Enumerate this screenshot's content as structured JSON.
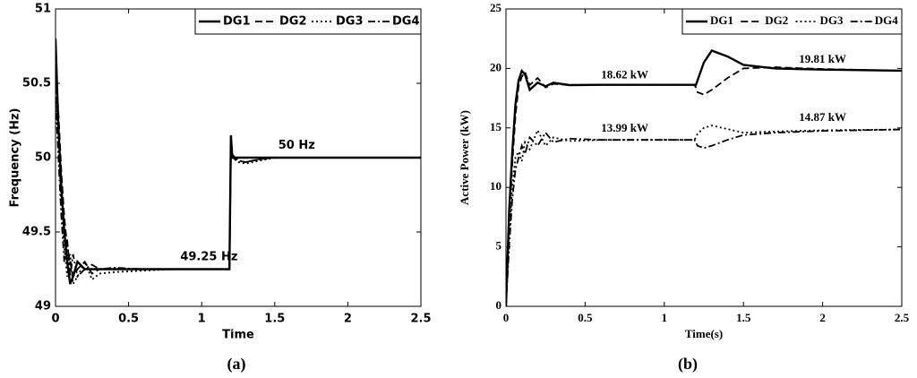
{
  "chart_data": [
    {
      "type": "line",
      "xlabel": "Time",
      "ylabel": "Frequency (Hz)",
      "caption": "(a)",
      "xlim": [
        0,
        2.5
      ],
      "ylim": [
        49,
        51
      ],
      "xticks": [
        0,
        0.5,
        1,
        1.5,
        2,
        2.5
      ],
      "yticks": [
        49,
        49.5,
        50,
        50.5,
        51
      ],
      "legend": "upper right",
      "grid": false,
      "annotations": [
        "49.25 Hz",
        "50 Hz"
      ],
      "x": [
        0,
        0.02,
        0.04,
        0.06,
        0.08,
        0.1,
        0.12,
        0.15,
        0.2,
        0.25,
        0.3,
        0.4,
        0.6,
        0.8,
        1.0,
        1.19,
        1.2,
        1.21,
        1.25,
        1.3,
        1.4,
        1.5,
        1.7,
        2.0,
        2.5
      ],
      "series": [
        {
          "name": "DG1",
          "color": "#000000",
          "dash": "solid",
          "values": [
            50.8,
            50.2,
            49.8,
            49.5,
            49.3,
            49.15,
            49.2,
            49.3,
            49.25,
            49.25,
            49.25,
            49.25,
            49.25,
            49.25,
            49.25,
            49.25,
            50.15,
            50.0,
            50.0,
            50.0,
            50.0,
            50.0,
            50.0,
            50.0,
            50.0
          ]
        },
        {
          "name": "DG2",
          "color": "#000000",
          "dash": "dashed",
          "values": [
            50.6,
            50.3,
            49.9,
            49.6,
            49.4,
            49.3,
            49.2,
            49.25,
            49.3,
            49.22,
            49.25,
            49.25,
            49.25,
            49.25,
            49.25,
            49.25,
            50.05,
            50.0,
            49.98,
            49.97,
            49.99,
            50.0,
            50.0,
            50.0,
            50.0
          ]
        },
        {
          "name": "DG3",
          "color": "#000000",
          "dash": "dotted",
          "values": [
            50.5,
            50.1,
            49.7,
            49.4,
            49.2,
            49.35,
            49.15,
            49.2,
            49.3,
            49.18,
            49.22,
            49.23,
            49.24,
            49.25,
            49.25,
            49.25,
            50.02,
            50.0,
            49.97,
            49.96,
            49.98,
            50.0,
            50.0,
            50.0,
            50.0
          ]
        },
        {
          "name": "DG4",
          "color": "#000000",
          "dash": "dashdot",
          "values": [
            50.4,
            50.0,
            49.6,
            49.3,
            49.45,
            49.2,
            49.35,
            49.2,
            49.25,
            49.28,
            49.25,
            49.26,
            49.25,
            49.25,
            49.25,
            49.25,
            50.03,
            50.02,
            49.98,
            49.97,
            49.99,
            50.0,
            50.0,
            50.0,
            50.0
          ]
        }
      ]
    },
    {
      "type": "line",
      "xlabel": "Time(s)",
      "ylabel": "Active Power (kW)",
      "caption": "(b)",
      "xlim": [
        0,
        2.5
      ],
      "ylim": [
        0,
        25
      ],
      "xticks": [
        0,
        0.5,
        1,
        1.5,
        2,
        2.5
      ],
      "yticks": [
        0,
        5,
        10,
        15,
        20,
        25
      ],
      "legend": "upper right",
      "grid": false,
      "annotations": [
        "18.62 kW",
        "19.81 kW",
        "13.99 kW",
        "14.87 kW"
      ],
      "x": [
        0,
        0.02,
        0.04,
        0.06,
        0.08,
        0.1,
        0.12,
        0.15,
        0.2,
        0.25,
        0.3,
        0.4,
        0.6,
        0.8,
        1.0,
        1.19,
        1.2,
        1.21,
        1.25,
        1.3,
        1.4,
        1.5,
        1.7,
        2.0,
        2.5
      ],
      "series": [
        {
          "name": "DG1",
          "color": "#000000",
          "dash": "solid",
          "values": [
            0,
            8,
            13,
            17,
            19,
            19.8,
            19.5,
            18.2,
            18.8,
            18.5,
            18.8,
            18.6,
            18.62,
            18.62,
            18.62,
            18.62,
            18.62,
            19.0,
            20.5,
            21.5,
            21.0,
            20.3,
            20.0,
            19.9,
            19.81
          ]
        },
        {
          "name": "DG2",
          "color": "#000000",
          "dash": "dashed",
          "values": [
            0,
            7,
            12,
            16,
            18.5,
            19.3,
            19.7,
            18.6,
            19.2,
            18.4,
            18.7,
            18.6,
            18.62,
            18.62,
            18.62,
            18.62,
            18.4,
            18.0,
            17.8,
            18.2,
            19.2,
            20.0,
            20.1,
            19.95,
            19.81
          ]
        },
        {
          "name": "DG3",
          "color": "#000000",
          "dash": "dotted",
          "values": [
            0,
            6,
            10,
            12.5,
            13,
            12.2,
            13.8,
            13.2,
            14.8,
            13.5,
            14.2,
            13.9,
            13.99,
            13.99,
            13.99,
            13.99,
            14.2,
            14.5,
            15.0,
            15.2,
            14.9,
            14.6,
            14.7,
            14.8,
            14.87
          ]
        },
        {
          "name": "DG4",
          "color": "#000000",
          "dash": "dashdot",
          "values": [
            0,
            5,
            9,
            11.5,
            12.5,
            13.5,
            12.8,
            14.2,
            13.5,
            14.6,
            13.8,
            14.1,
            13.99,
            13.99,
            13.99,
            13.99,
            13.8,
            13.5,
            13.3,
            13.5,
            14.0,
            14.4,
            14.6,
            14.75,
            14.87
          ]
        }
      ]
    }
  ]
}
